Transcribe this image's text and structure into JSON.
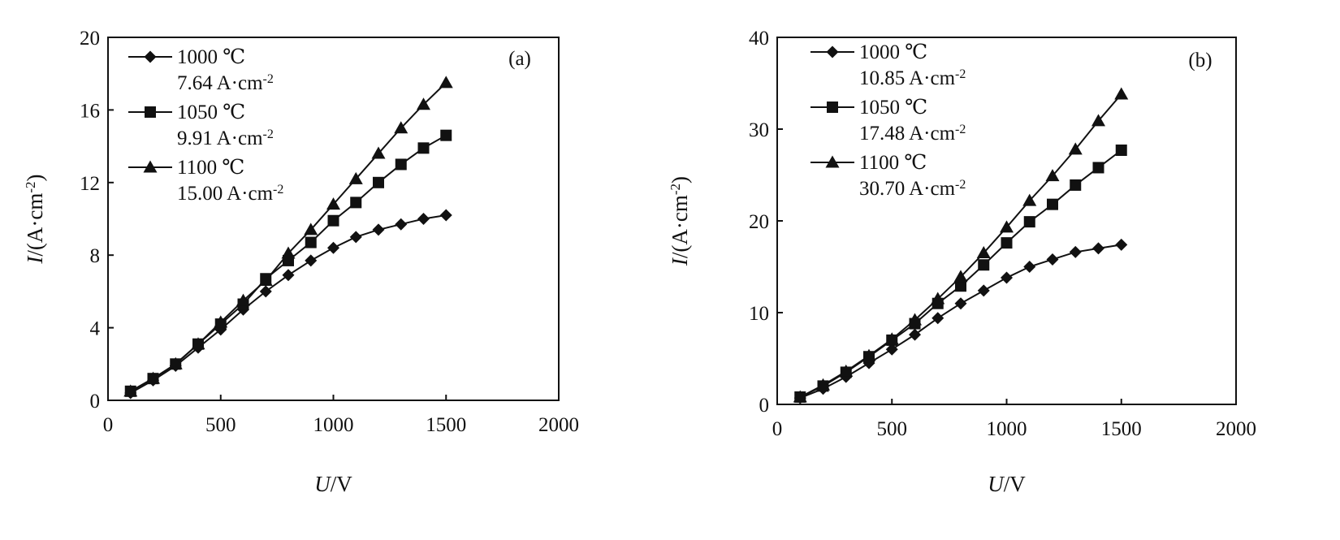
{
  "chart_data": [
    {
      "type": "line",
      "panel": "(a)",
      "xlabel": {
        "var": "U",
        "unit": "/V"
      },
      "ylabel": {
        "var": "I",
        "unit_main": "/(A·cm",
        "unit_sup": "-2",
        "unit_close": ")"
      },
      "xlim": [
        0,
        2000
      ],
      "ylim": [
        0,
        20
      ],
      "xticks": [
        "0",
        "500",
        "1000",
        "1500",
        "2000"
      ],
      "yticks": [
        "0",
        "4",
        "8",
        "12",
        "16",
        "20"
      ],
      "xtick_values": [
        0,
        500,
        1000,
        1500,
        2000
      ],
      "ytick_values": [
        0,
        4,
        8,
        12,
        16,
        20
      ],
      "legend_position": "top-left",
      "grid": false,
      "x": [
        100,
        200,
        300,
        400,
        500,
        600,
        700,
        800,
        900,
        1000,
        1100,
        1200,
        1300,
        1400,
        1500
      ],
      "series": [
        {
          "name": "1000 ℃",
          "sub": "7.64 A·cm",
          "marker": "diamond",
          "values": [
            0.4,
            1.1,
            1.9,
            2.9,
            3.9,
            5.0,
            6.0,
            6.9,
            7.7,
            8.4,
            9.0,
            9.4,
            9.7,
            10.0,
            10.2
          ]
        },
        {
          "name": "1050 ℃",
          "sub": "9.91 A·cm",
          "marker": "square",
          "values": [
            0.5,
            1.2,
            2.0,
            3.1,
            4.2,
            5.3,
            6.7,
            7.7,
            8.7,
            9.9,
            10.9,
            12.0,
            13.0,
            13.9,
            14.6
          ]
        },
        {
          "name": "1100 ℃",
          "sub": "15.00 A·cm",
          "marker": "triangle",
          "values": [
            0.5,
            1.2,
            2.0,
            3.1,
            4.3,
            5.5,
            6.6,
            8.1,
            9.4,
            10.8,
            12.2,
            13.6,
            15.0,
            16.3,
            17.5
          ]
        }
      ]
    },
    {
      "type": "line",
      "panel": "(b)",
      "xlabel": {
        "var": "U",
        "unit": "/V"
      },
      "ylabel": {
        "var": "I",
        "unit_main": "/(A·cm",
        "unit_sup": "-2",
        "unit_close": ")"
      },
      "xlim": [
        0,
        2000
      ],
      "ylim": [
        0,
        40
      ],
      "xticks": [
        "0",
        "500",
        "1000",
        "1500",
        "2000"
      ],
      "yticks": [
        "0",
        "10",
        "20",
        "30",
        "40"
      ],
      "xtick_values": [
        0,
        500,
        1000,
        1500,
        2000
      ],
      "ytick_values": [
        0,
        10,
        20,
        30,
        40
      ],
      "legend_position": "top-left",
      "grid": false,
      "x": [
        100,
        200,
        300,
        400,
        500,
        600,
        700,
        800,
        900,
        1000,
        1100,
        1200,
        1300,
        1400,
        1500
      ],
      "series": [
        {
          "name": "1000 ℃",
          "sub": "10.85 A·cm",
          "marker": "diamond",
          "values": [
            0.7,
            1.7,
            3.0,
            4.5,
            6.0,
            7.6,
            9.4,
            11.0,
            12.4,
            13.8,
            15.0,
            15.8,
            16.6,
            17.0,
            17.4
          ]
        },
        {
          "name": "1050 ℃",
          "sub": "17.48 A·cm",
          "marker": "square",
          "values": [
            0.8,
            2.0,
            3.5,
            5.2,
            7.0,
            8.8,
            11.0,
            12.9,
            15.2,
            17.6,
            19.9,
            21.8,
            23.9,
            25.8,
            27.7
          ]
        },
        {
          "name": "1100 ℃",
          "sub": "30.70 A·cm",
          "marker": "triangle",
          "values": [
            0.8,
            2.1,
            3.6,
            5.3,
            7.1,
            9.2,
            11.5,
            13.9,
            16.5,
            19.3,
            22.2,
            24.9,
            27.8,
            30.9,
            33.8
          ]
        }
      ],
      "sup": "-2"
    }
  ]
}
